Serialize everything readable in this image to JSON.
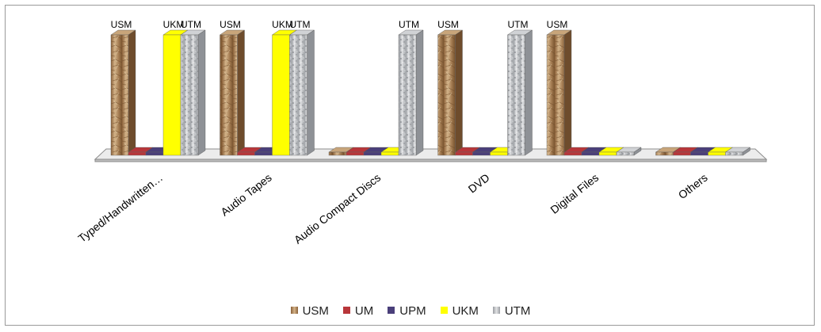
{
  "chart_data": {
    "type": "bar",
    "title": "",
    "xlabel": "",
    "ylabel": "",
    "categories": [
      "Typed/Handwritten…",
      "Audio Tapes",
      "Audio Compact Discs",
      "DVD",
      "Digital Files",
      "Others"
    ],
    "series": [
      {
        "name": "USM",
        "color": "#b08a5e",
        "values": [
          1,
          1,
          0,
          1,
          1,
          0
        ]
      },
      {
        "name": "UM",
        "color": "#b8363a",
        "values": [
          0,
          0,
          0,
          0,
          0,
          0
        ]
      },
      {
        "name": "UPM",
        "color": "#4a3f7a",
        "values": [
          0,
          0,
          0,
          0,
          0,
          0
        ]
      },
      {
        "name": "UKM",
        "color": "#ffff00",
        "values": [
          1,
          1,
          0,
          0,
          0,
          0
        ]
      },
      {
        "name": "UTM",
        "color": "#b7b9bd",
        "values": [
          1,
          1,
          1,
          1,
          0,
          0
        ]
      }
    ],
    "ylim": [
      0,
      1
    ],
    "grid": false,
    "legend_position": "bottom"
  }
}
